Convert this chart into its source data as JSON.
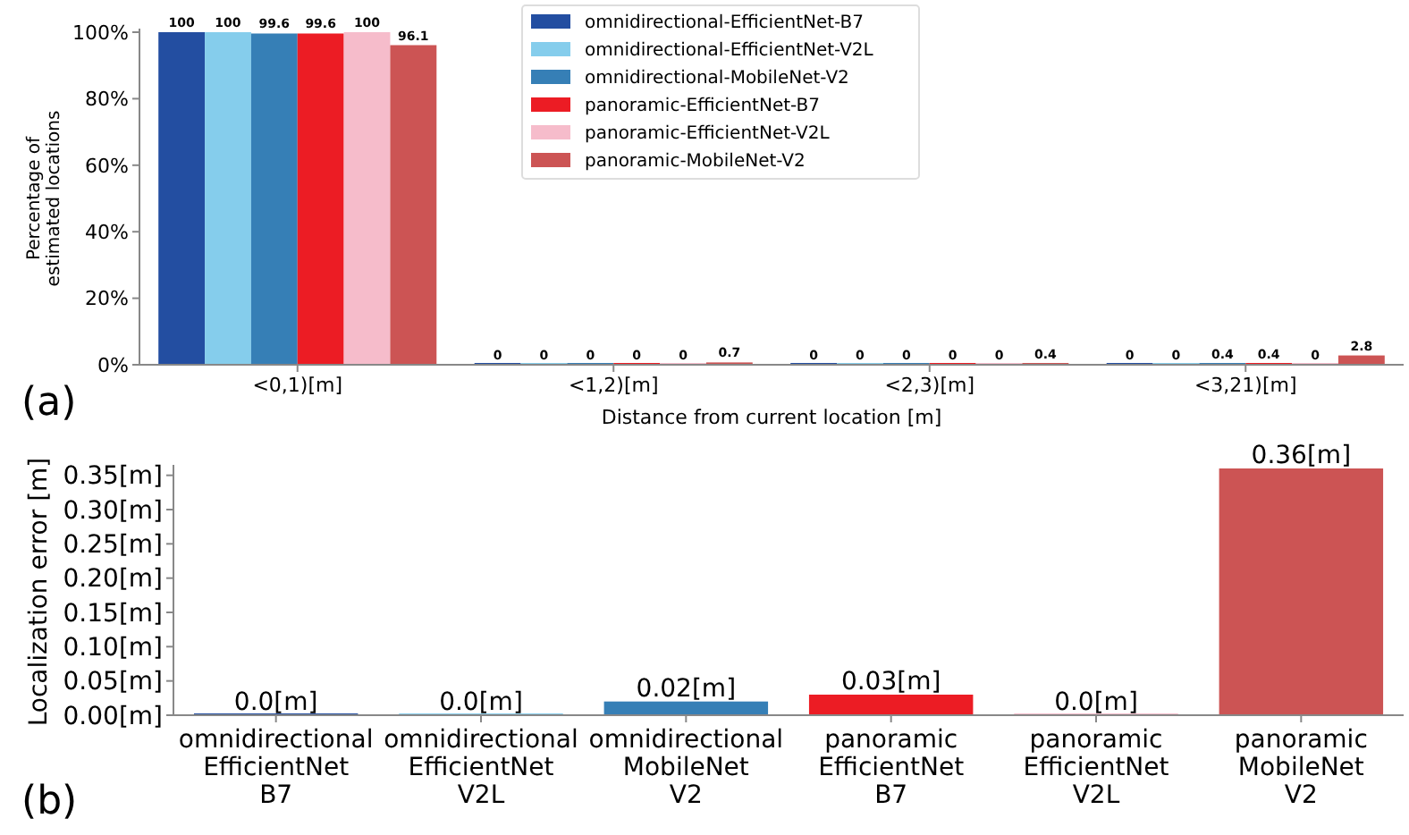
{
  "chart_data": [
    {
      "type": "bar",
      "xlabel": "Distance from current location [m]",
      "ylabel": "Percentage of\nestimated locations",
      "annotations": [
        "(a)"
      ],
      "categories": [
        "<0,1)[m]",
        "<1,2)[m]",
        "<2,3)[m]",
        "<3,21)[m]"
      ],
      "series": [
        {
          "name": "omnidirectional-EfficientNet-B7",
          "color": "#234ea1",
          "values": [
            100,
            0,
            0,
            0
          ]
        },
        {
          "name": "omnidirectional-EfficientNet-V2L",
          "color": "#85cdec",
          "values": [
            100,
            0,
            0,
            0
          ]
        },
        {
          "name": "omnidirectional-MobileNet-V2",
          "color": "#367fb6",
          "values": [
            99.6,
            0,
            0,
            0.4
          ]
        },
        {
          "name": "panoramic-EfficientNet-B7",
          "color": "#ec1c24",
          "values": [
            99.6,
            0,
            0,
            0.4
          ]
        },
        {
          "name": "panoramic-EfficientNet-V2L",
          "color": "#f6bccb",
          "values": [
            100,
            0,
            0,
            0
          ]
        },
        {
          "name": "panoramic-MobileNet-V2",
          "color": "#cc5454",
          "values": [
            96.1,
            0.7,
            0.4,
            2.8
          ]
        }
      ],
      "ylim": [
        0,
        100
      ],
      "yticks": [
        {
          "value": 0,
          "label": "0%"
        },
        {
          "value": 20,
          "label": "20%"
        },
        {
          "value": 40,
          "label": "40%"
        },
        {
          "value": 60,
          "label": "60%"
        },
        {
          "value": 80,
          "label": "80%"
        },
        {
          "value": 100,
          "label": "100%"
        }
      ],
      "data_labels": true,
      "legend": "top",
      "grid": false
    },
    {
      "type": "bar",
      "ylabel": "Localization error [m]",
      "annotations": [
        "(b)"
      ],
      "categories": [
        "omnidirectional\nEfficientNet\nB7",
        "omnidirectional\nEfficientNet\nV2L",
        "omnidirectional\nMobileNet\nV2",
        "panoramic\nEfficientNet\nB7",
        "panoramic\nEfficientNet\nV2L",
        "panoramic\nMobileNet\nV2"
      ],
      "values": [
        0,
        0,
        0.02,
        0.03,
        0,
        0.36
      ],
      "colors": [
        "#234ea1",
        "#85cdec",
        "#367fb6",
        "#ec1c24",
        "#f6bccb",
        "#cc5454"
      ],
      "value_labels": [
        "0.0[m]",
        "0.0[m]",
        "0.02[m]",
        "0.03[m]",
        "0.0[m]",
        "0.36[m]"
      ],
      "ylim": [
        0,
        0.36
      ],
      "yticks": [
        {
          "value": 0,
          "label": "0.00[m]"
        },
        {
          "value": 0.05,
          "label": "0.05[m]"
        },
        {
          "value": 0.1,
          "label": "0.10[m]"
        },
        {
          "value": 0.15,
          "label": "0.15[m]"
        },
        {
          "value": 0.2,
          "label": "0.20[m]"
        },
        {
          "value": 0.25,
          "label": "0.25[m]"
        },
        {
          "value": 0.3,
          "label": "0.30[m]"
        },
        {
          "value": 0.35,
          "label": "0.35[m]"
        }
      ],
      "grid": false
    }
  ]
}
